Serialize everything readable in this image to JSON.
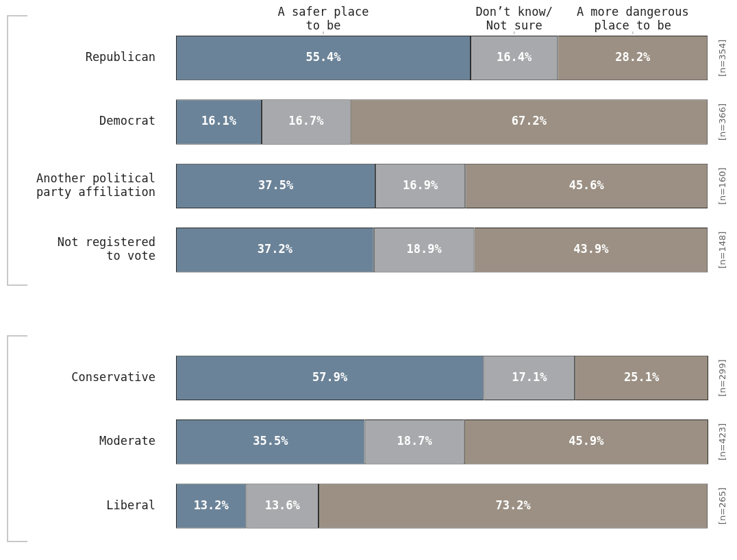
{
  "chart_data": {
    "type": "bar",
    "orientation": "horizontal",
    "stacked": true,
    "legend": "top",
    "grid": false,
    "categories": [
      "Republican",
      "Democrat",
      "Another political\nparty affiliation",
      "Not registered\nto vote",
      null,
      "Conservative",
      "Moderate",
      "Liberal"
    ],
    "series": [
      {
        "name": "A safer place\nto be",
        "color": "#6b8398",
        "values": [
          55.4,
          16.1,
          37.5,
          37.2,
          null,
          57.9,
          35.5,
          13.2
        ],
        "value_labels": [
          "55.4%",
          "16.1%",
          "37.5%",
          "37.2%",
          null,
          "57.9%",
          "35.5%",
          "13.2%"
        ]
      },
      {
        "name": "Don’t know/\nNot sure",
        "color": "#a7a9ac",
        "values": [
          16.4,
          16.7,
          16.9,
          18.9,
          null,
          17.1,
          18.7,
          13.6
        ],
        "value_labels": [
          "16.4%",
          "16.7%",
          "16.9%",
          "18.9%",
          null,
          "17.1%",
          "18.7%",
          "13.6%"
        ]
      },
      {
        "name": "A more dangerous\nplace to be",
        "color": "#9b9083",
        "values": [
          28.2,
          67.2,
          45.6,
          43.9,
          null,
          25.1,
          45.9,
          73.2
        ],
        "value_labels": [
          "28.2%",
          "67.2%",
          "45.6%",
          "43.9%",
          null,
          "25.1%",
          "45.9%",
          "73.2%"
        ]
      }
    ],
    "annotations": [
      "[n=354]",
      "[n=366]",
      "[n=160]",
      "[n=148]",
      "[n=299]",
      "[n=423]",
      "[n=265]"
    ]
  }
}
